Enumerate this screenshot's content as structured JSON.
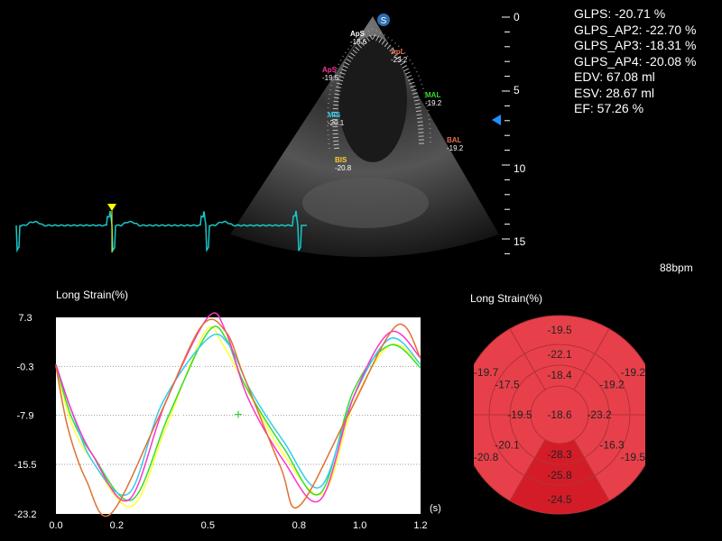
{
  "metrics": [
    "GLPS: -20.71 %",
    "GLPS_AP2: -22.70 %",
    "GLPS_AP3: -18.31 %",
    "GLPS_AP4: -20.08 %",
    "EDV: 67.08 ml",
    "ESV: 28.67 ml",
    "EF: 57.26 %"
  ],
  "heart_rate": "88bpm",
  "depth_scale": [
    "0",
    "5",
    "10",
    "15"
  ],
  "ultrasound_badge": "S",
  "segment_markers": [
    {
      "name": "ApS",
      "value": "-18.6",
      "color": "#ffffff"
    },
    {
      "name": "ApL",
      "value": "-23.2",
      "color": "#e07050"
    },
    {
      "name": "ApS",
      "value": "-19.5",
      "color": "#ff3399"
    },
    {
      "name": "MAL",
      "value": "-19.2",
      "color": "#33dd33"
    },
    {
      "name": "MIS",
      "value": "-20.1",
      "color": "#33ccee"
    },
    {
      "name": "BAL",
      "value": "-19.2",
      "color": "#e07050"
    },
    {
      "name": "BIS",
      "value": "-20.8",
      "color": "#ffcc33"
    }
  ],
  "colors": {
    "ecg": "#18c8c8",
    "marker": "#ffff00",
    "focus_arrow": "#1e90ff",
    "bull_fill": "#e8404a",
    "bull_fill_dark": "#d41c28",
    "bull_stroke": "#b43238"
  },
  "chart_data": {
    "type": "line",
    "title": "Long Strain(%)",
    "xlabel": "(s)",
    "xlim": [
      0,
      1.2
    ],
    "ylim": [
      -23.2,
      7.3
    ],
    "x_ticks": [
      "0.0",
      "0.2",
      "0.5",
      "0.8",
      "1.0",
      "1.2"
    ],
    "y_ticks": [
      "7.3",
      "-0.3",
      "-7.9",
      "-15.5",
      "-23.2"
    ],
    "grid": "dotted horizontal",
    "series": [
      {
        "color": "#ffffff",
        "x": [
          0,
          0.06,
          0.13,
          0.26,
          0.38,
          0.52,
          0.64,
          0.75,
          0.86,
          0.98,
          1.06,
          1.2
        ],
        "y": [
          -0.3,
          -8,
          -13,
          -21,
          -11,
          2,
          -2,
          -12,
          -18,
          -8,
          1,
          0
        ]
      },
      {
        "color": "#ffff33",
        "x": [
          0,
          0.05,
          0.12,
          0.25,
          0.36,
          0.49,
          0.55,
          0.63,
          0.75,
          0.88,
          0.98,
          1.1,
          1.2
        ],
        "y": [
          0,
          -9,
          -15,
          -22,
          -10,
          5,
          3,
          -4,
          -14,
          -20,
          -6,
          3,
          0
        ]
      },
      {
        "color": "#33dd33",
        "x": [
          0,
          0.05,
          0.12,
          0.25,
          0.37,
          0.5,
          0.56,
          0.62,
          0.75,
          0.87,
          0.98,
          1.1,
          1.2
        ],
        "y": [
          0,
          -8,
          -14,
          -21,
          -8,
          5,
          4,
          -3,
          -13,
          -20,
          -4,
          3,
          -0.5
        ]
      },
      {
        "color": "#33ccee",
        "x": [
          0,
          0.05,
          0.12,
          0.24,
          0.35,
          0.5,
          0.57,
          0.64,
          0.75,
          0.87,
          0.98,
          1.1,
          1.2
        ],
        "y": [
          0,
          -7,
          -15,
          -20,
          -6,
          4,
          3,
          -4,
          -12,
          -19,
          -5,
          4,
          0
        ]
      },
      {
        "color": "#ff33cc",
        "x": [
          0,
          0.05,
          0.12,
          0.24,
          0.36,
          0.5,
          0.56,
          0.63,
          0.75,
          0.87,
          0.98,
          1.1,
          1.2
        ],
        "y": [
          0,
          -7,
          -14,
          -21,
          -6,
          7.3,
          5,
          -5,
          -15,
          -21,
          -5,
          5,
          1
        ]
      },
      {
        "color": "#e07030",
        "x": [
          0,
          0.04,
          0.1,
          0.18,
          0.34,
          0.48,
          0.56,
          0.62,
          0.74,
          0.8,
          0.96,
          1.12,
          1.2
        ],
        "y": [
          -0.3,
          -10,
          -18,
          -23.2,
          -8,
          6,
          5,
          -2,
          -16,
          -22,
          -8,
          6,
          1
        ]
      }
    ],
    "annotation": "+"
  },
  "bullseye": {
    "title": "Long Strain(%)",
    "apex": "-18.6",
    "ring_apical": [
      "-22.1",
      "-19.2",
      "-23.2",
      "-28.3",
      "-20.1",
      "-19.5"
    ],
    "ring_mid": [
      "-18.4",
      "-19.2",
      "-16.3",
      "-25.8",
      "-17.5",
      "-19.7"
    ],
    "ring_basal": [
      "-19.5",
      "-19.2",
      "-19.5",
      "-24.5",
      "-20.8",
      "-17.5"
    ],
    "labels_visible": [
      {
        "text": "-19.5",
        "ring": "basal",
        "pos": "top"
      },
      {
        "text": "-22.1",
        "ring": "mid",
        "pos": "top"
      },
      {
        "text": "-18.4",
        "ring": "apical",
        "pos": "top"
      },
      {
        "text": "-19.7",
        "ring": "basal",
        "pos": "upper-left"
      },
      {
        "text": "-17.5",
        "ring": "mid",
        "pos": "upper-left"
      },
      {
        "text": "-19.2",
        "ring": "basal",
        "pos": "upper-right"
      },
      {
        "text": "-19.2",
        "ring": "mid",
        "pos": "upper-right"
      },
      {
        "text": "-19.5",
        "ring": "apical",
        "pos": "left"
      },
      {
        "text": "-18.6",
        "ring": "apex",
        "pos": "center"
      },
      {
        "text": "-23.2",
        "ring": "apical",
        "pos": "right"
      },
      {
        "text": "-20.1",
        "ring": "mid",
        "pos": "lower-left"
      },
      {
        "text": "-20.8",
        "ring": "basal",
        "pos": "lower-left"
      },
      {
        "text": "-28.3",
        "ring": "apical",
        "pos": "bottom"
      },
      {
        "text": "-16.3",
        "ring": "mid",
        "pos": "lower-right"
      },
      {
        "text": "-19.5",
        "ring": "basal",
        "pos": "lower-right"
      },
      {
        "text": "-25.8",
        "ring": "mid",
        "pos": "bottom"
      },
      {
        "text": "-24.5",
        "ring": "basal",
        "pos": "bottom"
      }
    ]
  }
}
